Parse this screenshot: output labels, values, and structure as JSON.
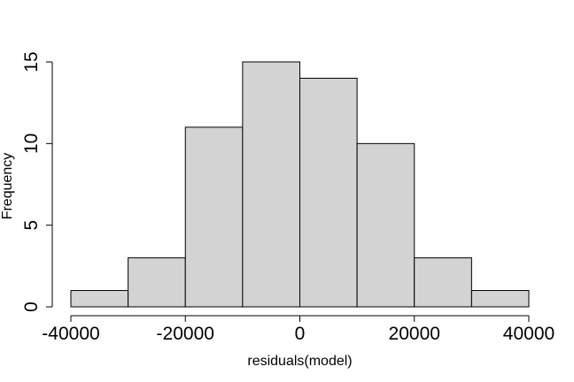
{
  "chart_data": {
    "type": "bar",
    "title": "",
    "xlabel": "residuals(model)",
    "ylabel": "Frequency",
    "bins": [
      {
        "x0": -40000,
        "x1": -30000,
        "count": 1
      },
      {
        "x0": -30000,
        "x1": -20000,
        "count": 3
      },
      {
        "x0": -20000,
        "x1": -10000,
        "count": 11
      },
      {
        "x0": -10000,
        "x1": 0,
        "count": 15
      },
      {
        "x0": 0,
        "x1": 10000,
        "count": 14
      },
      {
        "x0": 10000,
        "x1": 20000,
        "count": 10
      },
      {
        "x0": 20000,
        "x1": 30000,
        "count": 3
      },
      {
        "x0": 30000,
        "x1": 40000,
        "count": 1
      }
    ],
    "xlim": [
      -40000,
      40000
    ],
    "ylim": [
      0,
      15
    ],
    "xticks": [
      -40000,
      -20000,
      0,
      20000,
      40000
    ],
    "xtick_labels": [
      "-40000",
      "-20000",
      "0",
      "20000",
      "40000"
    ],
    "yticks": [
      0,
      5,
      10,
      15
    ],
    "ytick_labels": [
      "0",
      "5",
      "10",
      "15"
    ],
    "bar_color": "#d3d3d3",
    "edge_color": "#000000",
    "grid": false
  }
}
